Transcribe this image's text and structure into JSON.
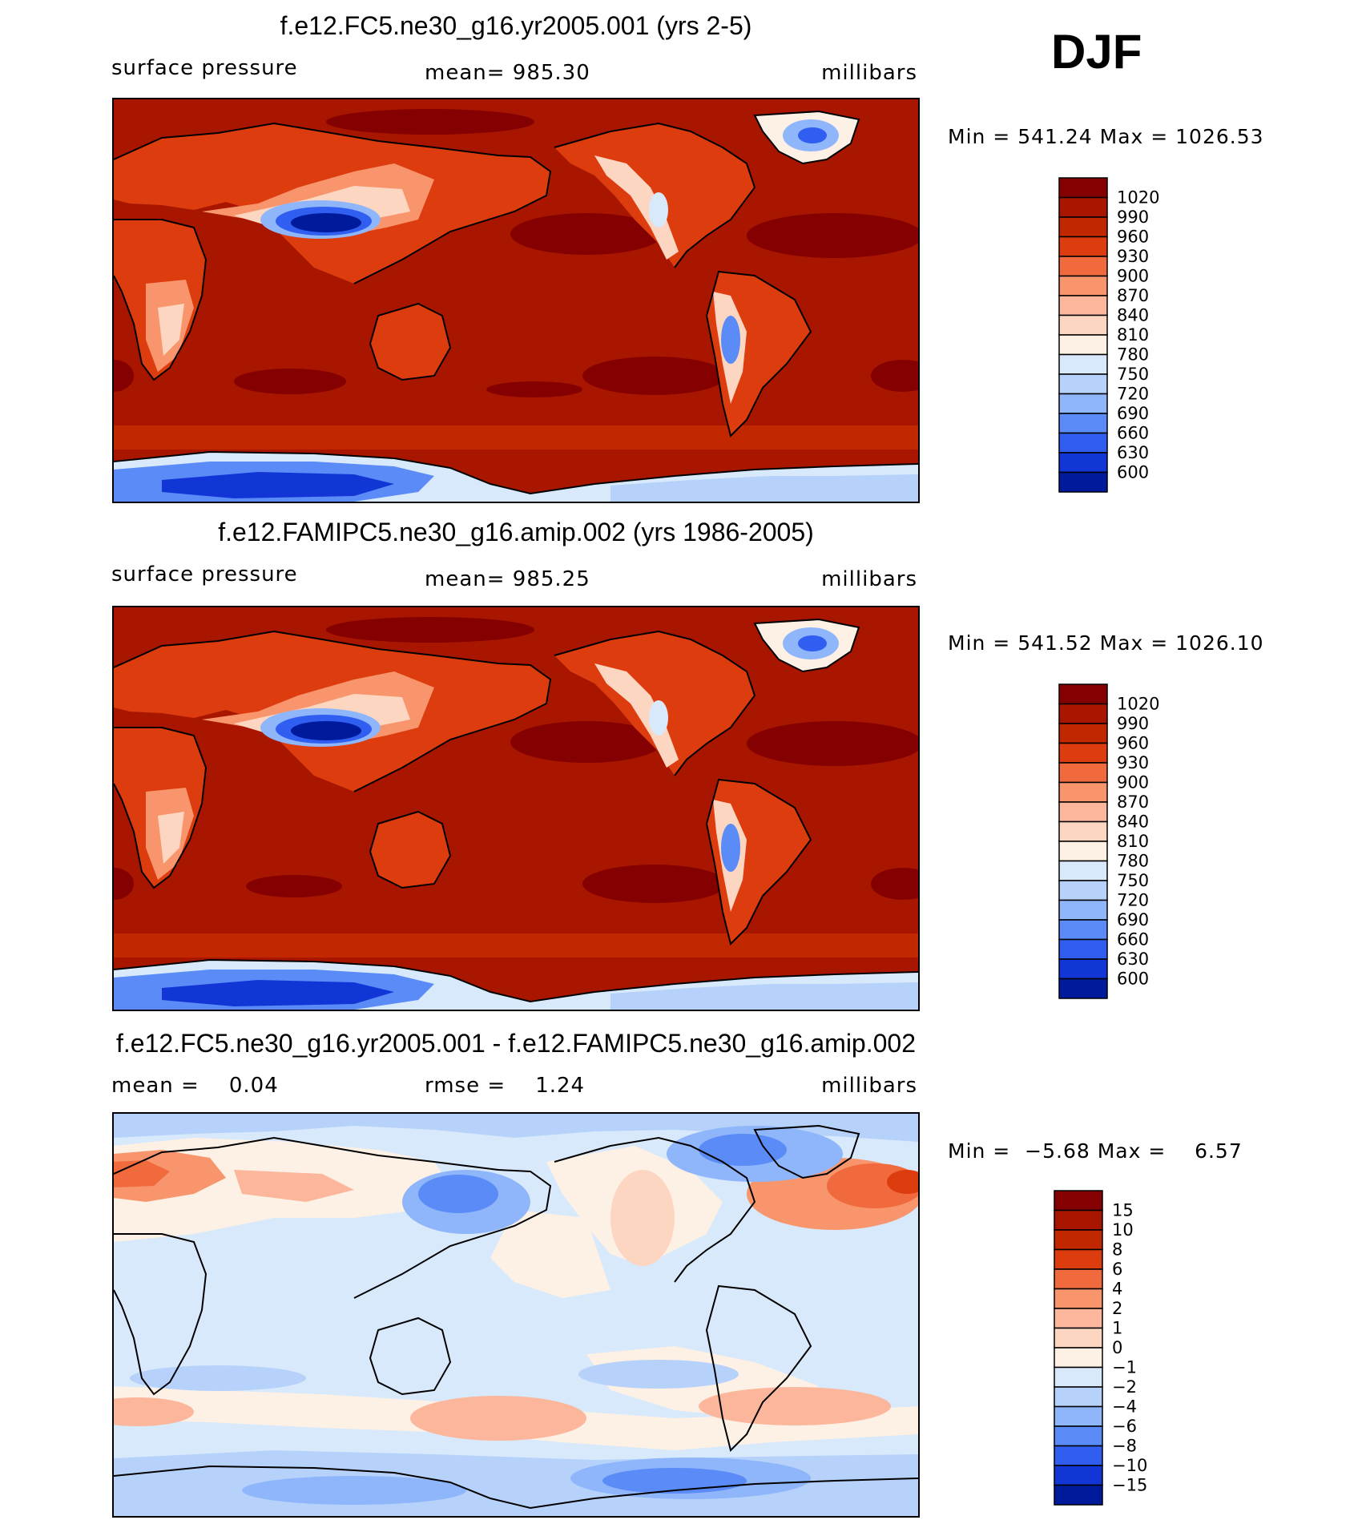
{
  "season": "DJF",
  "chart_data": [
    {
      "type": "heatmap",
      "title": "f.e12.FC5.ne30_g16.yr2005.001 (yrs 2-5)",
      "left_label": "surface pressure",
      "center_label": "mean= 985.30",
      "right_label": "millibars",
      "min_max": "Min = 541.24 Max = 1026.53",
      "colorbar_levels": [
        "1020",
        "990",
        "960",
        "930",
        "900",
        "870",
        "840",
        "810",
        "780",
        "750",
        "720",
        "690",
        "660",
        "630",
        "600"
      ],
      "colorbar_colors": [
        "#850000",
        "#a81600",
        "#c22800",
        "#dd3c0f",
        "#f06a3e",
        "#f8956d",
        "#fbb69b",
        "#fdd6c2",
        "#fdf0e4",
        "#d8e9fb",
        "#b6d2fb",
        "#8fb6fb",
        "#5a8bf6",
        "#2f5ef0",
        "#1236d6",
        "#001a9c"
      ]
    },
    {
      "type": "heatmap",
      "title": "f.e12.FAMIPC5.ne30_g16.amip.002 (yrs 1986-2005)",
      "left_label": "surface pressure",
      "center_label": "mean= 985.25",
      "right_label": "millibars",
      "min_max": "Min = 541.52 Max = 1026.10",
      "colorbar_levels": [
        "1020",
        "990",
        "960",
        "930",
        "900",
        "870",
        "840",
        "810",
        "780",
        "750",
        "720",
        "690",
        "660",
        "630",
        "600"
      ],
      "colorbar_colors": [
        "#850000",
        "#a81600",
        "#c22800",
        "#dd3c0f",
        "#f06a3e",
        "#f8956d",
        "#fbb69b",
        "#fdd6c2",
        "#fdf0e4",
        "#d8e9fb",
        "#b6d2fb",
        "#8fb6fb",
        "#5a8bf6",
        "#2f5ef0",
        "#1236d6",
        "#001a9c"
      ]
    },
    {
      "type": "heatmap",
      "title": "f.e12.FC5.ne30_g16.yr2005.001 - f.e12.FAMIPC5.ne30_g16.amip.002",
      "left_label": "mean =    0.04",
      "center_label": "rmse =    1.24",
      "right_label": "millibars",
      "min_max": "Min =  −5.68 Max =    6.57",
      "colorbar_levels": [
        "15",
        "10",
        "8",
        "6",
        "4",
        "2",
        "1",
        "0",
        "−1",
        "−2",
        "−4",
        "−6",
        "−8",
        "−10",
        "−15"
      ],
      "colorbar_colors": [
        "#850000",
        "#a81600",
        "#c22800",
        "#dd3c0f",
        "#f06a3e",
        "#f8956d",
        "#fbb69b",
        "#fdd6c2",
        "#fdf0e4",
        "#d8e9fb",
        "#b6d2fb",
        "#8fb6fb",
        "#5a8bf6",
        "#2f5ef0",
        "#1236d6",
        "#001a9c"
      ]
    }
  ]
}
